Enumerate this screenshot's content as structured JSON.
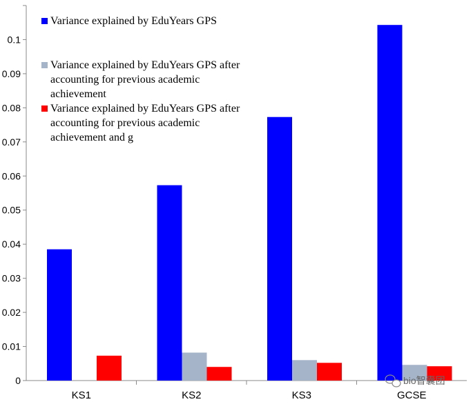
{
  "chart_data": {
    "type": "bar",
    "title": "",
    "xlabel": "",
    "ylabel": "",
    "ylim": [
      0,
      0.11
    ],
    "yticks": [
      "0",
      "0.01",
      "0.02",
      "0.03",
      "0.04",
      "0.05",
      "0.06",
      "0.07",
      "0.08",
      "0.09",
      "0.1"
    ],
    "ytick_values": [
      0,
      0.01,
      0.02,
      0.03,
      0.04,
      0.05,
      0.06,
      0.07,
      0.08,
      0.09,
      0.1
    ],
    "grid": false,
    "legend_position": "top-left",
    "categories": [
      "KS1",
      "KS2",
      "KS3",
      "GCSE"
    ],
    "series": [
      {
        "name": "Variance explained by EduYears GPS",
        "color": "#0000ff",
        "values": [
          0.0385,
          0.0573,
          0.0773,
          0.1043
        ]
      },
      {
        "name": "Variance explained by EduYears GPS after accounting for previous academic achievement",
        "legend_lines": [
          "Variance explained by EduYears GPS after",
          "accounting for previous academic",
          "achievement"
        ],
        "color": "#a5b4c8",
        "values": [
          null,
          0.0082,
          0.006,
          0.0046
        ]
      },
      {
        "name": "Variance explained by EduYears GPS after accounting for previous academic achievement and g",
        "legend_lines": [
          "Variance explained by EduYears GPS after",
          "accounting for previous academic",
          "achievement and g"
        ],
        "color": "#ff0000",
        "values": [
          0.0073,
          0.004,
          0.0052,
          0.0042
        ]
      }
    ]
  },
  "watermark": {
    "text": "bio智囊团",
    "icon": "wechat-icon"
  }
}
